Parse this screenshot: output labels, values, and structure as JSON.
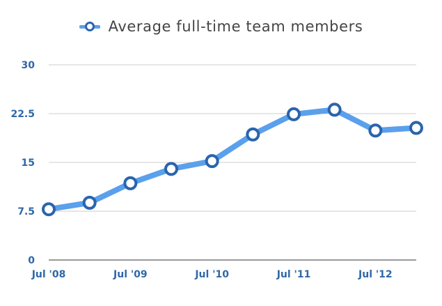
{
  "chart_data": {
    "type": "line",
    "title": "",
    "xlabel": "",
    "ylabel": "",
    "x": [
      "Jul '08",
      "Jan '09",
      "Jul '09",
      "Jan '10",
      "Jul '10",
      "Jan '11",
      "Jul '11",
      "Jan '12",
      "Jul '12",
      "Jan '13"
    ],
    "x_tick_labels": [
      "Jul '08",
      "Jul '09",
      "Jul '10",
      "Jul '11",
      "Jul '12"
    ],
    "y_ticks": [
      "0",
      "7.5",
      "15",
      "22.5",
      "30"
    ],
    "ylim": [
      0,
      30
    ],
    "grid": true,
    "legend_position": "top-center",
    "series": [
      {
        "name": "Average full-time team members",
        "values": [
          7.8,
          8.8,
          11.8,
          14.0,
          15.2,
          19.3,
          22.4,
          23.1,
          19.9,
          20.3
        ],
        "color": "#5aa0ec",
        "marker_color": "#2a64ad"
      }
    ]
  }
}
